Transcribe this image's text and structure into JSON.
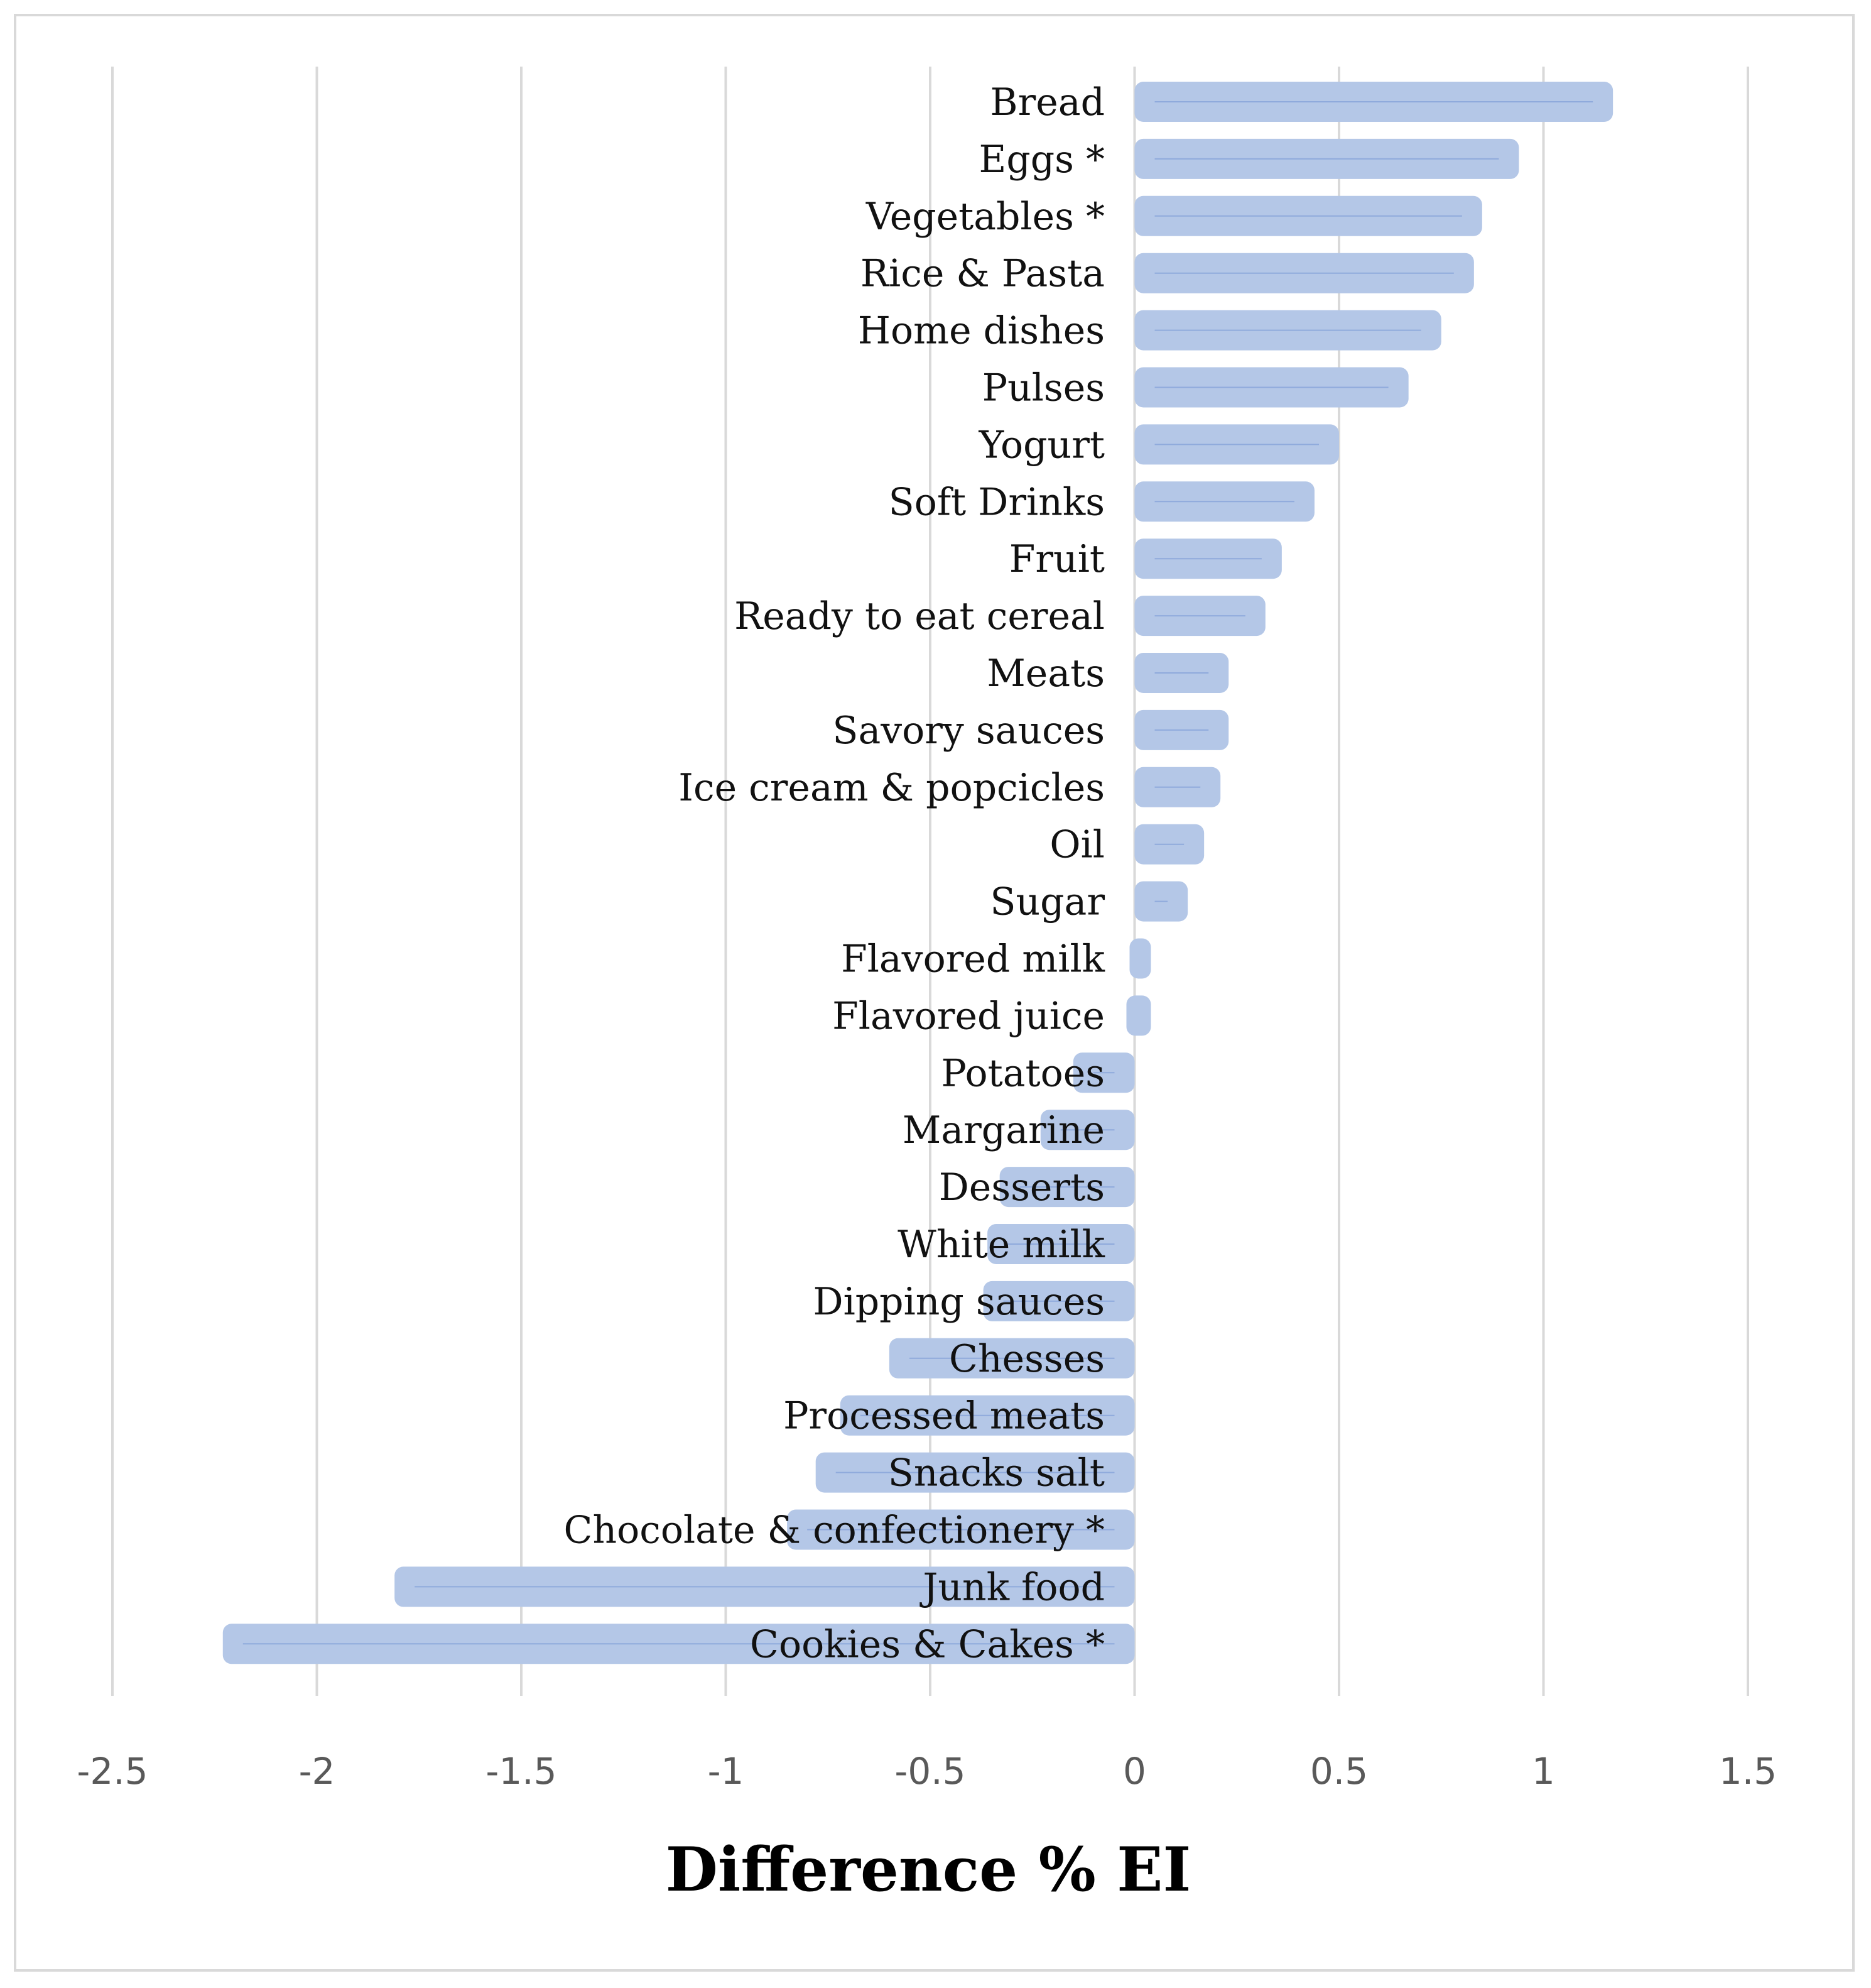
{
  "chart_data": {
    "type": "bar",
    "orientation": "horizontal",
    "title": "",
    "xlabel": "Difference % EI",
    "ylabel": "",
    "xlim": [
      -2.5,
      1.5
    ],
    "xticks": [
      -2.5,
      -2,
      -1.5,
      -1,
      -0.5,
      0,
      0.5,
      1,
      1.5
    ],
    "xtick_labels": [
      "-2.5",
      "-2",
      "-1.5",
      "-1",
      "-0.5",
      "0",
      "0.5",
      "1",
      "1.5"
    ],
    "grid": "vertical",
    "legend": "none",
    "colors": {
      "bar": "#b4c7e7",
      "bar_line": "#8faadc",
      "grid": "#d9d9d9"
    },
    "categories": [
      "Bread",
      "Eggs *",
      "Vegetables *",
      "Rice & Pasta",
      "Home dishes",
      "Pulses",
      "Yogurt",
      "Soft Drinks",
      "Fruit",
      "Ready to eat cereal",
      "Meats",
      "Savory sauces",
      "Ice cream & popcicles",
      "Oil",
      "Sugar",
      "Flavored milk",
      "Flavored juice",
      "Potatoes",
      "Margarine",
      "Desserts",
      "White milk",
      "Dipping sauces",
      "Chesses",
      "Processed meats",
      "Snacks salt",
      "Chocolate & confectionery *",
      "Junk food",
      "Cookies & Cakes *"
    ],
    "values": [
      1.17,
      0.94,
      0.85,
      0.83,
      0.75,
      0.67,
      0.5,
      0.44,
      0.36,
      0.32,
      0.23,
      0.23,
      0.21,
      0.17,
      0.13,
      0.0,
      -0.02,
      -0.15,
      -0.23,
      -0.33,
      -0.36,
      -0.37,
      -0.6,
      -0.72,
      -0.78,
      -0.85,
      -1.81,
      -2.23
    ]
  }
}
